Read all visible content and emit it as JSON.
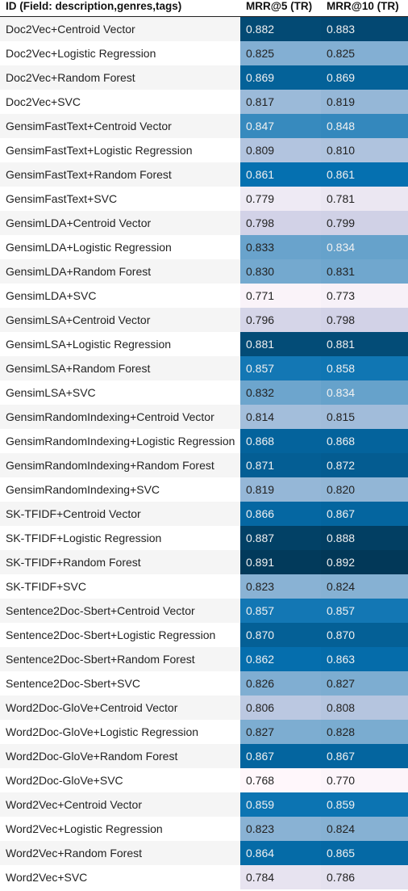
{
  "chart_data": {
    "type": "table",
    "columns": [
      "ID (Field: description,genres,tags)",
      "MRR@5 (TR)",
      "MRR@10 (TR)"
    ],
    "rows": [
      [
        "Doc2Vec+Centroid Vector",
        "0.882",
        "0.883"
      ],
      [
        "Doc2Vec+Logistic Regression",
        "0.825",
        "0.825"
      ],
      [
        "Doc2Vec+Random Forest",
        "0.869",
        "0.869"
      ],
      [
        "Doc2Vec+SVC",
        "0.817",
        "0.819"
      ],
      [
        "GensimFastText+Centroid Vector",
        "0.847",
        "0.848"
      ],
      [
        "GensimFastText+Logistic Regression",
        "0.809",
        "0.810"
      ],
      [
        "GensimFastText+Random Forest",
        "0.861",
        "0.861"
      ],
      [
        "GensimFastText+SVC",
        "0.779",
        "0.781"
      ],
      [
        "GensimLDA+Centroid Vector",
        "0.798",
        "0.799"
      ],
      [
        "GensimLDA+Logistic Regression",
        "0.833",
        "0.834"
      ],
      [
        "GensimLDA+Random Forest",
        "0.830",
        "0.831"
      ],
      [
        "GensimLDA+SVC",
        "0.771",
        "0.773"
      ],
      [
        "GensimLSA+Centroid Vector",
        "0.796",
        "0.798"
      ],
      [
        "GensimLSA+Logistic Regression",
        "0.881",
        "0.881"
      ],
      [
        "GensimLSA+Random Forest",
        "0.857",
        "0.858"
      ],
      [
        "GensimLSA+SVC",
        "0.832",
        "0.834"
      ],
      [
        "GensimRandomIndexing+Centroid Vector",
        "0.814",
        "0.815"
      ],
      [
        "GensimRandomIndexing+Logistic Regression",
        "0.868",
        "0.868"
      ],
      [
        "GensimRandomIndexing+Random Forest",
        "0.871",
        "0.872"
      ],
      [
        "GensimRandomIndexing+SVC",
        "0.819",
        "0.820"
      ],
      [
        "SK-TFIDF+Centroid Vector",
        "0.866",
        "0.867"
      ],
      [
        "SK-TFIDF+Logistic Regression",
        "0.887",
        "0.888"
      ],
      [
        "SK-TFIDF+Random Forest",
        "0.891",
        "0.892"
      ],
      [
        "SK-TFIDF+SVC",
        "0.823",
        "0.824"
      ],
      [
        "Sentence2Doc-Sbert+Centroid Vector",
        "0.857",
        "0.857"
      ],
      [
        "Sentence2Doc-Sbert+Logistic Regression",
        "0.870",
        "0.870"
      ],
      [
        "Sentence2Doc-Sbert+Random Forest",
        "0.862",
        "0.863"
      ],
      [
        "Sentence2Doc-Sbert+SVC",
        "0.826",
        "0.827"
      ],
      [
        "Word2Doc-GloVe+Centroid Vector",
        "0.806",
        "0.808"
      ],
      [
        "Word2Doc-GloVe+Logistic Regression",
        "0.827",
        "0.828"
      ],
      [
        "Word2Doc-GloVe+Random Forest",
        "0.867",
        "0.867"
      ],
      [
        "Word2Doc-GloVe+SVC",
        "0.768",
        "0.770"
      ],
      [
        "Word2Vec+Centroid Vector",
        "0.859",
        "0.859"
      ],
      [
        "Word2Vec+Logistic Regression",
        "0.823",
        "0.824"
      ],
      [
        "Word2Vec+Random Forest",
        "0.864",
        "0.865"
      ],
      [
        "Word2Vec+SVC",
        "0.784",
        "0.786"
      ]
    ],
    "color_scale": {
      "type": "sequential",
      "colors": [
        "#fff7fb",
        "#d0d1e6",
        "#74a9cf",
        "#0570b0",
        "#023858"
      ],
      "domain": [
        0.768,
        0.892
      ]
    }
  }
}
